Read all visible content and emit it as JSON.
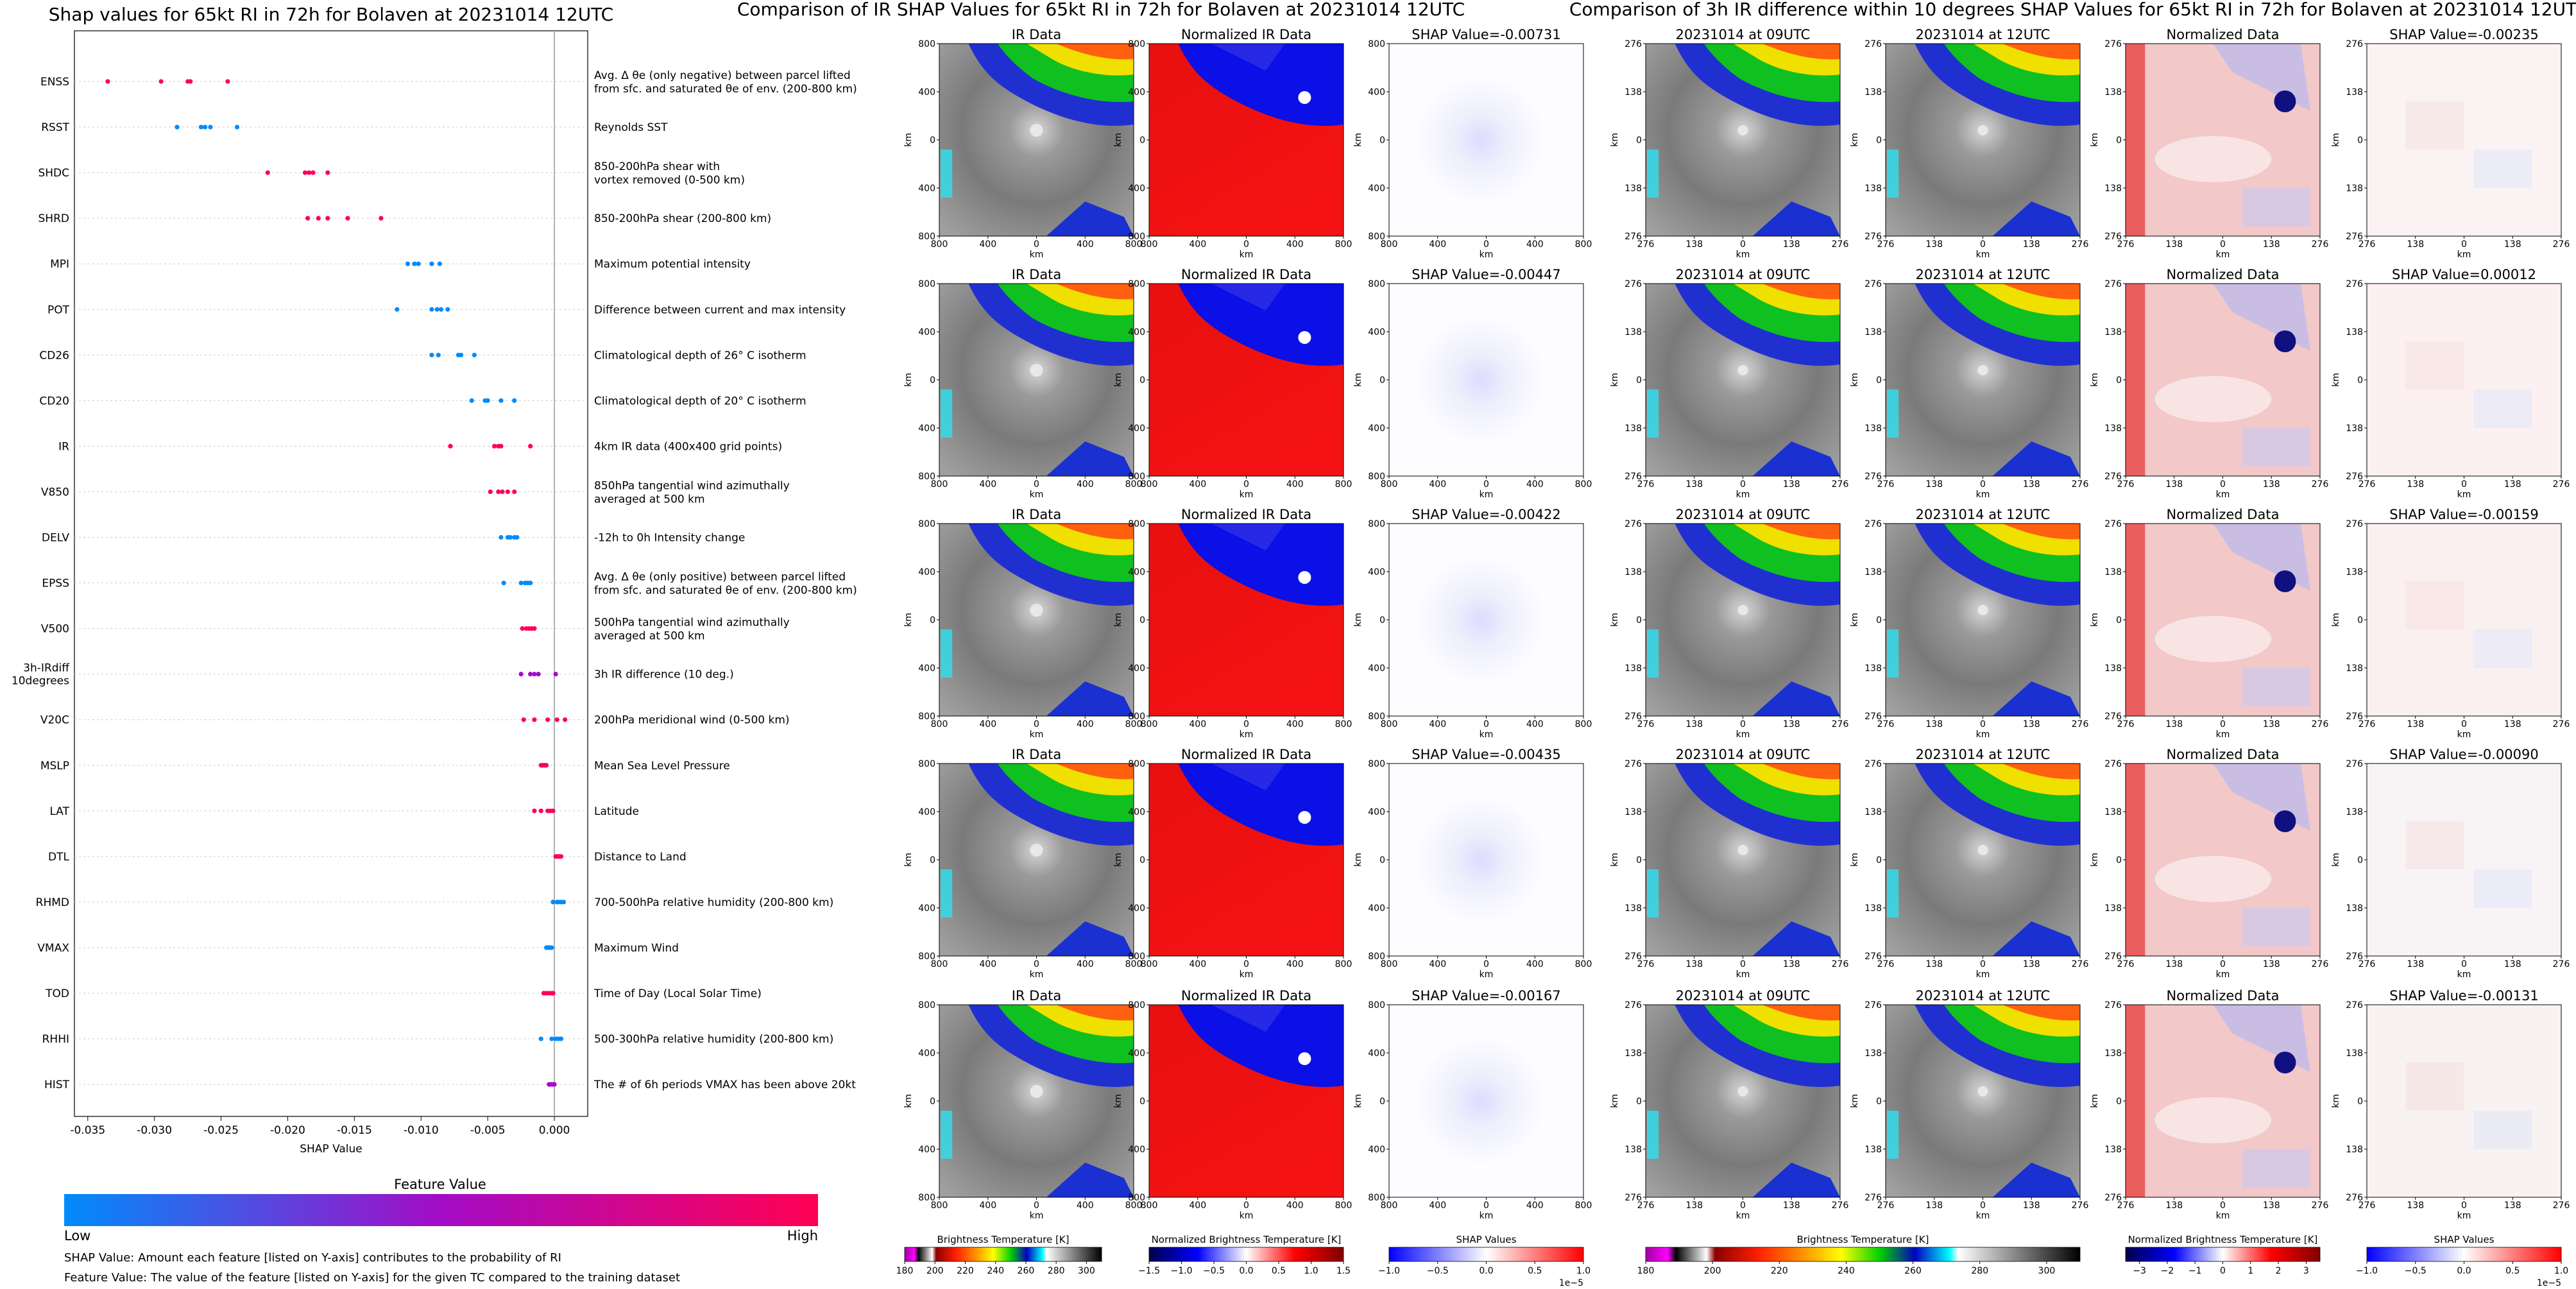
{
  "chart_data": [
    {
      "type": "scatter",
      "title": "Shap values for 65kt RI in 72h for Bolaven at 20231014 12UTC",
      "xlabel": "SHAP Value",
      "xlim": [
        -0.036,
        0.0025
      ],
      "xticks": [
        "-0.035",
        "-0.030",
        "-0.025",
        "-0.020",
        "-0.015",
        "-0.010",
        "-0.005",
        "0.000"
      ],
      "xtick_values": [
        -0.035,
        -0.03,
        -0.025,
        -0.02,
        -0.015,
        -0.01,
        -0.005,
        0.0
      ],
      "colorbar": {
        "title": "Feature Value",
        "low_label": "Low",
        "high_label": "High",
        "low_color": "#008bfb",
        "mid_color": "#a40cc6",
        "high_color": "#ff0052"
      },
      "notes": [
        "SHAP Value: Amount each feature [listed on Y-axis] contributes to the probability of RI",
        "Feature Value: The value of the feature [listed on Y-axis] for the given TC compared to the training dataset"
      ],
      "features": [
        {
          "name": "ENSS",
          "desc": [
            "Avg. Δ θe (only negative) between parcel lifted",
            "from sfc. and saturated θe of env. (200-800 km)"
          ],
          "values": [
            -0.0335,
            -0.0295,
            -0.0275,
            -0.0273,
            -0.0245
          ],
          "color": "high"
        },
        {
          "name": "RSST",
          "desc": [
            "Reynolds SST"
          ],
          "values": [
            -0.0283,
            -0.0265,
            -0.0262,
            -0.0258,
            -0.0238
          ],
          "color": "low"
        },
        {
          "name": "SHDC",
          "desc": [
            "850-200hPa shear with",
            "vortex removed (0-500 km)"
          ],
          "values": [
            -0.0215,
            -0.0187,
            -0.0184,
            -0.0181,
            -0.017
          ],
          "color": "high"
        },
        {
          "name": "SHRD",
          "desc": [
            "850-200hPa shear (200-800 km)"
          ],
          "values": [
            -0.0185,
            -0.0177,
            -0.017,
            -0.0155,
            -0.013
          ],
          "color": "high"
        },
        {
          "name": "MPI",
          "desc": [
            "Maximum potential intensity"
          ],
          "values": [
            -0.011,
            -0.0105,
            -0.0102,
            -0.0092,
            -0.0086
          ],
          "color": "low"
        },
        {
          "name": "POT",
          "desc": [
            "Difference between current and max intensity"
          ],
          "values": [
            -0.0118,
            -0.0092,
            -0.0088,
            -0.0085,
            -0.008
          ],
          "color": "low"
        },
        {
          "name": "CD26",
          "desc": [
            "Climatological depth of 26° C isotherm"
          ],
          "values": [
            -0.0092,
            -0.0087,
            -0.0072,
            -0.007,
            -0.006
          ],
          "color": "low"
        },
        {
          "name": "CD20",
          "desc": [
            "Climatological depth of 20° C isotherm"
          ],
          "values": [
            -0.0062,
            -0.0052,
            -0.005,
            -0.004,
            -0.003
          ],
          "color": "low"
        },
        {
          "name": "IR",
          "desc": [
            "4km IR data (400x400 grid points)"
          ],
          "values": [
            -0.0078,
            -0.0045,
            -0.0042,
            -0.004,
            -0.0018
          ],
          "color": "high"
        },
        {
          "name": "V850",
          "desc": [
            "850hPa tangential wind azimuthally",
            "averaged at 500 km"
          ],
          "values": [
            -0.0048,
            -0.0042,
            -0.0039,
            -0.0035,
            -0.003
          ],
          "color": "high"
        },
        {
          "name": "DELV",
          "desc": [
            "-12h to 0h Intensity change"
          ],
          "values": [
            -0.004,
            -0.0035,
            -0.0033,
            -0.003,
            -0.0028
          ],
          "color": "low"
        },
        {
          "name": "EPSS",
          "desc": [
            "Avg. Δ θe (only positive) between parcel lifted",
            "from sfc. and saturated θe of env. (200-800 km)"
          ],
          "values": [
            -0.0038,
            -0.0025,
            -0.0022,
            -0.002,
            -0.0018
          ],
          "color": "low"
        },
        {
          "name": "V500",
          "desc": [
            "500hPa tangential wind azimuthally",
            "averaged at 500 km"
          ],
          "values": [
            -0.0024,
            -0.0021,
            -0.0019,
            -0.0017,
            -0.0015
          ],
          "color": "high"
        },
        {
          "name": "3h-IRdiff 10degrees",
          "desc": [
            "3h IR difference (10 deg.)"
          ],
          "values": [
            -0.0025,
            -0.0018,
            -0.0015,
            -0.0012,
            0.0001
          ],
          "color": "mid"
        },
        {
          "name": "V20C",
          "desc": [
            "200hPa meridional wind (0-500 km)"
          ],
          "values": [
            -0.0023,
            -0.0015,
            -0.0005,
            0.0002,
            0.0008
          ],
          "color": "high"
        },
        {
          "name": "MSLP",
          "desc": [
            "Mean Sea Level Pressure"
          ],
          "values": [
            -0.001,
            -0.0009,
            -0.0008,
            -0.0007,
            -0.0006
          ],
          "color": "high"
        },
        {
          "name": "LAT",
          "desc": [
            "Latitude"
          ],
          "values": [
            -0.0015,
            -0.001,
            -0.0005,
            -0.0003,
            -0.0001
          ],
          "color": "high"
        },
        {
          "name": "DTL",
          "desc": [
            "Distance to Land"
          ],
          "values": [
            0.0001,
            0.0002,
            0.0003,
            0.0004,
            0.0005
          ],
          "color": "high"
        },
        {
          "name": "RHMD",
          "desc": [
            "700-500hPa relative humidity (200-800 km)"
          ],
          "values": [
            -0.0001,
            0.0002,
            0.0003,
            0.0005,
            0.0007
          ],
          "color": "low"
        },
        {
          "name": "VMAX",
          "desc": [
            "Maximum Wind"
          ],
          "values": [
            -0.0006,
            -0.0005,
            -0.0004,
            -0.0003,
            -0.0002
          ],
          "color": "low"
        },
        {
          "name": "TOD",
          "desc": [
            "Time of Day (Local Solar Time)"
          ],
          "values": [
            -0.0008,
            -0.0006,
            -0.0004,
            -0.0002,
            -0.0001
          ],
          "color": "high"
        },
        {
          "name": "RHHI",
          "desc": [
            "500-300hPa relative humidity (200-800 km)"
          ],
          "values": [
            -0.001,
            -0.0002,
            0.0001,
            0.0003,
            0.0005
          ],
          "color": "low"
        },
        {
          "name": "HIST",
          "desc": [
            "The # of 6h periods VMAX has been above 20kt"
          ],
          "values": [
            -0.0004,
            -0.0003,
            -0.0002,
            -0.0001,
            0.0
          ],
          "color": "mid"
        }
      ]
    },
    {
      "type": "heatmap",
      "title": "Comparison of IR SHAP Values for 65kt RI in 72h for Bolaven at 20231014 12UTC",
      "col_titles": [
        "IR Data",
        "Normalized IR Data"
      ],
      "shap_titles": [
        "SHAP Value=-0.00731",
        "SHAP Value=-0.00447",
        "SHAP Value=-0.00422",
        "SHAP Value=-0.00435",
        "SHAP Value=-0.00167"
      ],
      "xlabel": "km",
      "ylabel": "km",
      "ticks": [
        "800",
        "400",
        "0",
        "400",
        "800"
      ],
      "colorbars": [
        {
          "label": "Brightness Temperature [K]",
          "ticks": [
            "180",
            "200",
            "220",
            "240",
            "260",
            "280",
            "300"
          ],
          "range": [
            180,
            310
          ]
        },
        {
          "label": "Normalized Brightness Temperature [K]",
          "ticks": [
            "−1.5",
            "−1.0",
            "−0.5",
            "0.0",
            "0.5",
            "1.0",
            "1.5"
          ],
          "range": [
            -1.5,
            1.5
          ]
        },
        {
          "label": "SHAP Values",
          "ticks": [
            "−1.0",
            "−0.5",
            "0.0",
            "0.5",
            "1.0"
          ],
          "range": [
            -1.0,
            1.0
          ],
          "offset": "1e−5"
        }
      ]
    },
    {
      "type": "heatmap",
      "title": "Comparison of 3h IR difference within 10 degrees SHAP Values for 65kt RI in 72h for Bolaven at 20231014 12UTC",
      "col_titles": [
        "20231014 at 09UTC",
        "20231014 at 12UTC",
        "Normalized Data"
      ],
      "shap_titles": [
        "SHAP Value=-0.00235",
        "SHAP Value=0.00012",
        "SHAP Value=-0.00159",
        "SHAP Value=-0.00090",
        "SHAP Value=-0.00131"
      ],
      "xlabel": "km",
      "ylabel": "km",
      "ticks": [
        "276",
        "138",
        "0",
        "138",
        "276"
      ],
      "colorbars": [
        {
          "label": "Brightness Temperature [K]",
          "ticks": [
            "180",
            "200",
            "220",
            "240",
            "260",
            "280",
            "300"
          ],
          "range": [
            180,
            310
          ]
        },
        {
          "label": "Normalized Brightness Temperature [K]",
          "ticks": [
            "−3",
            "−2",
            "−1",
            "0",
            "1",
            "2",
            "3"
          ],
          "range": [
            -3.5,
            3.5
          ]
        },
        {
          "label": "SHAP Values",
          "ticks": [
            "−1.0",
            "−0.5",
            "0.0",
            "0.5",
            "1.0"
          ],
          "range": [
            -1.0,
            1.0
          ],
          "offset": "1e−5"
        }
      ]
    }
  ]
}
